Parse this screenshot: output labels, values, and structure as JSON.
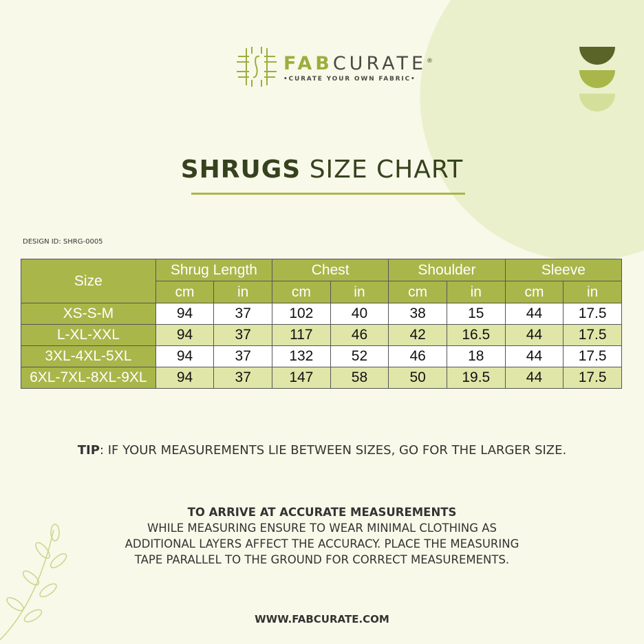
{
  "brand": {
    "name_bold": "FAB",
    "name_light": "CURATE",
    "registered": "®",
    "tagline": "•CURATE YOUR OWN FABRIC•"
  },
  "title": {
    "bold": "SHRUGS",
    "rest": " SIZE CHART"
  },
  "design_id": "DESIGN ID: SHRG-0005",
  "colors": {
    "header": "#a9b64a",
    "alt_row": "#dfe6a8",
    "background": "#f8f9e9",
    "circle": "#eaf0cb",
    "semis": [
      "#5a6428",
      "#a9b64a",
      "#d3df9b"
    ]
  },
  "table": {
    "size_header": "Size",
    "groups": [
      "Shrug Length",
      "Chest",
      "Shoulder",
      "Sleeve"
    ],
    "units": [
      "cm",
      "in",
      "cm",
      "in",
      "cm",
      "in",
      "cm",
      "in"
    ],
    "rows": [
      {
        "size": "XS-S-M",
        "values": [
          "94",
          "37",
          "102",
          "40",
          "38",
          "15",
          "44",
          "17.5"
        ]
      },
      {
        "size": "L-XL-XXL",
        "values": [
          "94",
          "37",
          "117",
          "46",
          "42",
          "16.5",
          "44",
          "17.5"
        ]
      },
      {
        "size": "3XL-4XL-5XL",
        "values": [
          "94",
          "37",
          "132",
          "52",
          "46",
          "18",
          "44",
          "17.5"
        ]
      },
      {
        "size": "6XL-7XL-8XL-9XL",
        "values": [
          "94",
          "37",
          "147",
          "58",
          "50",
          "19.5",
          "44",
          "17.5"
        ]
      }
    ]
  },
  "tip": {
    "label": "TIP",
    "text": ": IF YOUR MEASUREMENTS LIE BETWEEN SIZES, GO FOR THE LARGER SIZE."
  },
  "accurate": {
    "heading": "TO ARRIVE AT ACCURATE MEASUREMENTS",
    "lines": [
      "WHILE MEASURING ENSURE TO WEAR MINIMAL CLOTHING AS",
      "ADDITIONAL LAYERS AFFECT THE ACCURACY. PLACE THE MEASURING",
      "TAPE PARALLEL TO THE GROUND FOR CORRECT MEASUREMENTS."
    ]
  },
  "website": "WWW.FABCURATE.COM"
}
